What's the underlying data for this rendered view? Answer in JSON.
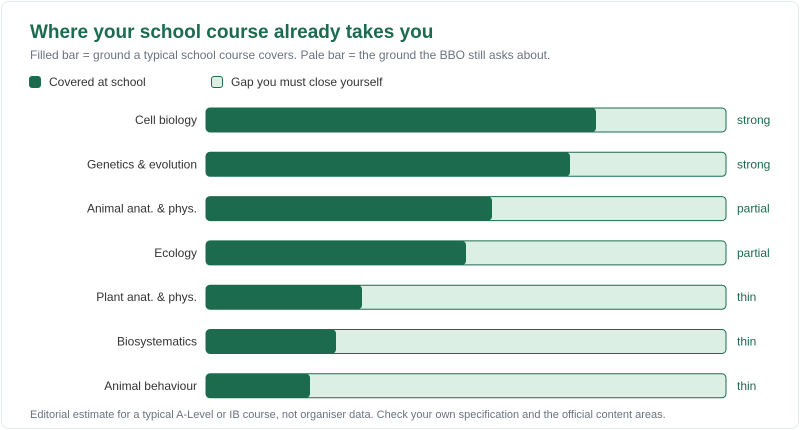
{
  "title": "Where your school course already takes you",
  "subtitle": "Filled bar = ground a typical school course covers. Pale bar = the ground the BBO still asks about.",
  "legend": {
    "covered_label": "Covered at school",
    "gap_label": "Gap you must close yourself"
  },
  "colors": {
    "covered": "#1d6b4f",
    "gap": "#dcefe5",
    "accent": "#1d6b4f"
  },
  "chart_data": {
    "type": "bar",
    "orientation": "horizontal",
    "stacked": true,
    "categories": [
      "Cell biology",
      "Genetics & evolution",
      "Animal anat. & phys.",
      "Ecology",
      "Plant anat. & phys.",
      "Biosystematics",
      "Animal behaviour"
    ],
    "series": [
      {
        "name": "Covered at school",
        "values": [
          75,
          70,
          55,
          50,
          30,
          25,
          20
        ]
      },
      {
        "name": "Gap you must close yourself",
        "values": [
          25,
          30,
          45,
          50,
          70,
          75,
          80
        ]
      }
    ],
    "ratings": [
      "strong",
      "strong",
      "partial",
      "partial",
      "thin",
      "thin",
      "thin"
    ],
    "xlim": [
      0,
      100
    ],
    "grid": false,
    "legend_position": "top-left"
  },
  "footnote": "Editorial estimate for a typical A-Level or IB course, not organiser data. Check your own specification and the official content areas."
}
